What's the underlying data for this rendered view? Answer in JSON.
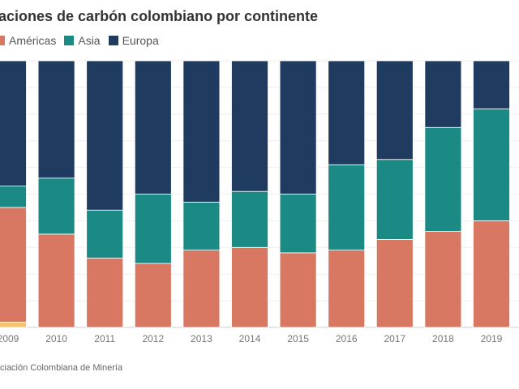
{
  "chart_data": {
    "type": "bar",
    "stacked": true,
    "normalized": true,
    "title": "aciones de carbón colombiano por continente",
    "categories": [
      "2009",
      "2010",
      "2011",
      "2012",
      "2013",
      "2014",
      "2015",
      "2016",
      "2017",
      "2018",
      "2019"
    ],
    "series": [
      {
        "name": "",
        "color": "#f2c46d",
        "values": [
          2,
          0,
          0,
          0,
          0,
          0,
          0,
          0,
          0,
          0,
          0
        ]
      },
      {
        "name": "Américas",
        "color": "#d97862",
        "values": [
          43,
          35,
          26,
          24,
          29,
          30,
          28,
          29,
          33,
          36,
          40
        ]
      },
      {
        "name": "Asia",
        "color": "#1b8a84",
        "values": [
          8,
          21,
          18,
          26,
          18,
          21,
          22,
          32,
          30,
          39,
          42
        ]
      },
      {
        "name": "Europa",
        "color": "#1f3b5f",
        "values": [
          47,
          44,
          56,
          50,
          53,
          49,
          50,
          39,
          37,
          25,
          18
        ]
      }
    ],
    "ylim": [
      0,
      100
    ],
    "grid": true,
    "legend_position": "top-left"
  },
  "source": "ciación Colombiana de Minería"
}
